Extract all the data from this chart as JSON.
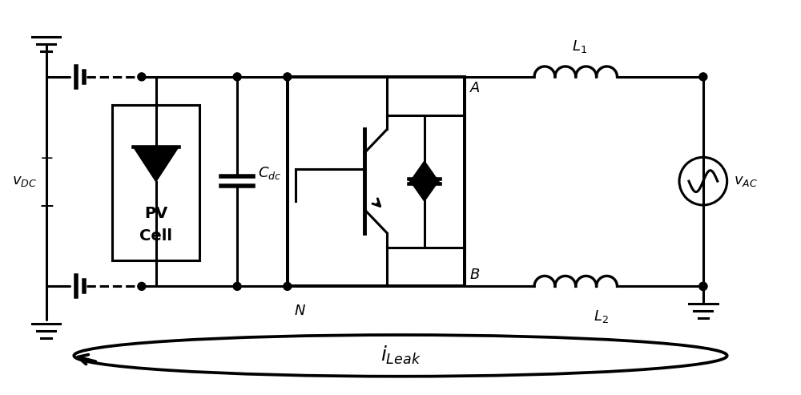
{
  "bg_color": "#ffffff",
  "line_color": "#000000",
  "lw": 2.2,
  "fig_width": 10.0,
  "fig_height": 4.93
}
